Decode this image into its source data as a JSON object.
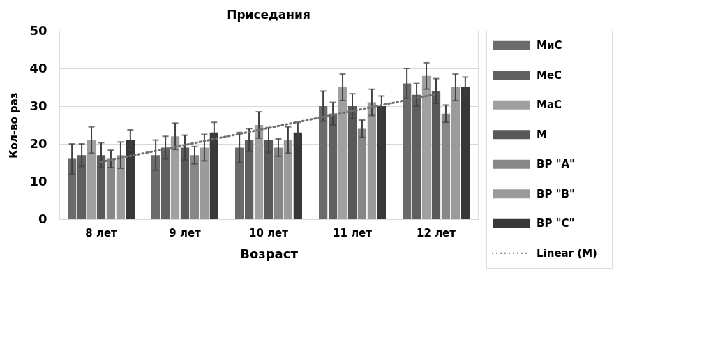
{
  "chart_data": {
    "type": "bar",
    "title": "Приседания",
    "xlabel": "Возраст",
    "ylabel": "Кол-во раз",
    "categories": [
      "8 лет",
      "9 лет",
      "10 лет",
      "11 лет",
      "12 лет"
    ],
    "ylim": [
      0,
      50
    ],
    "yticks": [
      0,
      10,
      20,
      30,
      40,
      50
    ],
    "grid": "y",
    "legend": "right",
    "series": [
      {
        "name": "МиС",
        "color": "#6b6b6b",
        "values": [
          16,
          17,
          19,
          30,
          36
        ],
        "errors": [
          4,
          4,
          4,
          4,
          4
        ]
      },
      {
        "name": "МеС",
        "color": "#606060",
        "values": [
          17,
          19,
          21,
          28,
          33
        ],
        "errors": [
          3,
          3,
          3,
          3,
          3
        ]
      },
      {
        "name": "МаС",
        "color": "#a0a0a0",
        "values": [
          21,
          22,
          25,
          35,
          38
        ],
        "errors": [
          3.5,
          3.5,
          3.5,
          3.5,
          3.5
        ]
      },
      {
        "name": "М",
        "color": "#595959",
        "values": [
          17,
          19,
          21,
          30,
          34
        ],
        "errors": [
          3.3,
          3.3,
          3.3,
          3.3,
          3.3
        ]
      },
      {
        "name": "ВР \"А\"",
        "color": "#878787",
        "values": [
          16,
          17,
          19,
          24,
          28
        ],
        "errors": [
          2.3,
          2.3,
          2.3,
          2.3,
          2.3
        ]
      },
      {
        "name": "ВР \"В\"",
        "color": "#9b9b9b",
        "values": [
          17,
          19,
          21,
          31,
          35
        ],
        "errors": [
          3.5,
          3.5,
          3.5,
          3.5,
          3.5
        ]
      },
      {
        "name": "ВР \"С\"",
        "color": "#383838",
        "values": [
          21,
          23,
          23,
          30,
          35
        ],
        "errors": [
          2.7,
          2.7,
          2.7,
          2.7,
          2.7
        ]
      },
      {
        "name": "Linear (М)",
        "type": "line",
        "line_style": "dotted",
        "color": "#707070",
        "x": [
          "8 лет",
          "9 лет",
          "10 лет",
          "11 лет",
          "12 лет"
        ],
        "values": [
          15.2,
          19.7,
          24.2,
          28.7,
          33.2
        ]
      }
    ]
  }
}
